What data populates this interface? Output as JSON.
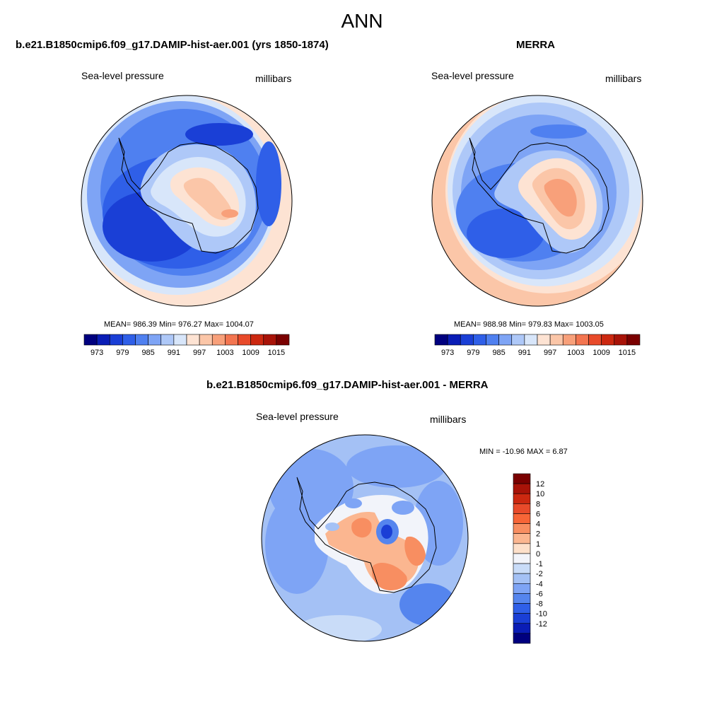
{
  "figure_title": "ANN",
  "colors": {
    "abs_colorbar": [
      "#00007f",
      "#0a1db6",
      "#1a3fd6",
      "#2f5fe8",
      "#4f80f0",
      "#7ea4f5",
      "#aec8f8",
      "#d8e6fa",
      "#fde3d3",
      "#fbc6a8",
      "#f8a07a",
      "#f37550",
      "#e84a2a",
      "#cc2810",
      "#a81308",
      "#7a0000"
    ],
    "diff_colorbar": [
      "#7a0000",
      "#a81308",
      "#cc2810",
      "#e84a2a",
      "#f76537",
      "#f88e61",
      "#fbb690",
      "#fde0ca",
      "#f2f4fa",
      "#c9dcf8",
      "#a4c1f5",
      "#7ea4f5",
      "#5585ee",
      "#2f5fe8",
      "#1a3fd6",
      "#0a1db6",
      "#00007f"
    ],
    "coast": "#000000"
  },
  "chart_data": [
    {
      "type": "heatmap",
      "projection": "south-polar-stereographic",
      "title": "b.e21.B1850cmip6.f09_g17.DAMIP-hist-aer.001 (yrs 1850-1874)",
      "left_label": "Sea-level pressure",
      "right_label": "millibars",
      "stats": {
        "mean": "986.39",
        "min": "976.27",
        "max": "1004.07"
      },
      "stats_text": "MEAN= 986.39  Min= 976.27  Max= 1004.07",
      "colorbar": {
        "levels": [
          973,
          976,
          979,
          982,
          985,
          988,
          991,
          994,
          997,
          1000,
          1003,
          1006,
          1009,
          1012,
          1015
        ],
        "tick_labels": [
          "973",
          "979",
          "985",
          "991",
          "997",
          "1003",
          "1009",
          "1015"
        ],
        "orientation": "horizontal"
      }
    },
    {
      "type": "heatmap",
      "projection": "south-polar-stereographic",
      "title": "MERRA",
      "left_label": "Sea-level pressure",
      "right_label": "millibars",
      "stats": {
        "mean": "988.98",
        "min": "979.83",
        "max": "1003.05"
      },
      "stats_text": "MEAN= 988.98  Min= 979.83  Max= 1003.05",
      "colorbar": {
        "levels": [
          973,
          976,
          979,
          982,
          985,
          988,
          991,
          994,
          997,
          1000,
          1003,
          1006,
          1009,
          1012,
          1015
        ],
        "tick_labels": [
          "973",
          "979",
          "985",
          "991",
          "997",
          "1003",
          "1009",
          "1015"
        ],
        "orientation": "horizontal"
      }
    },
    {
      "type": "heatmap",
      "projection": "south-polar-stereographic",
      "title": "b.e21.B1850cmip6.f09_g17.DAMIP-hist-aer.001 - MERRA",
      "left_label": "Sea-level pressure",
      "right_label": "millibars",
      "stats": {
        "min": "-10.96",
        "max": "6.87"
      },
      "stats_text": "MIN = -10.96 MAX =   6.87",
      "colorbar": {
        "levels": [
          12,
          10,
          8,
          6,
          4,
          2,
          1,
          0,
          -1,
          -2,
          -4,
          -6,
          -8,
          -10,
          -12
        ],
        "tick_labels": [
          "12",
          "10",
          "8",
          "6",
          "4",
          "2",
          "1",
          "0",
          "-1",
          "-2",
          "-4",
          "-6",
          "-8",
          "-10",
          "-12"
        ],
        "orientation": "vertical"
      }
    }
  ]
}
